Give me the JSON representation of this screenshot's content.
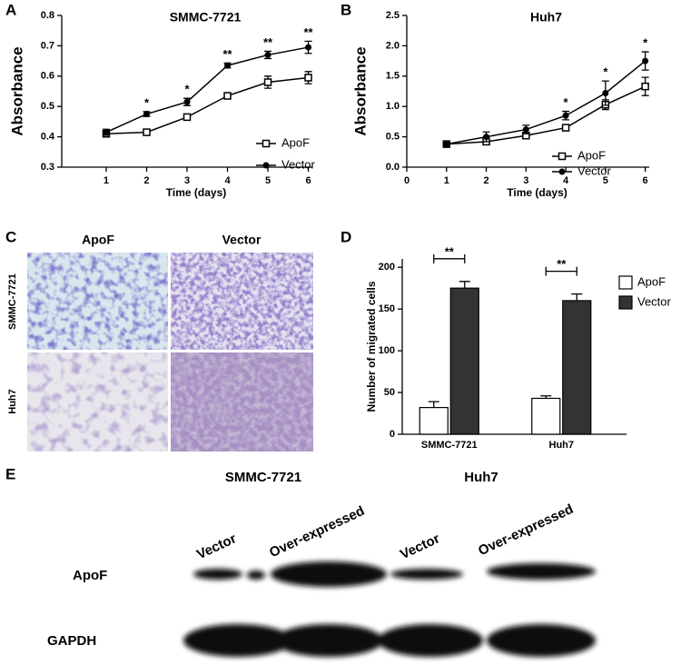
{
  "chart_data": [
    {
      "panel": "A",
      "type": "line",
      "title": "SMMC-7721",
      "xlabel": "Time (days)",
      "ylabel": "Absorbance",
      "x": [
        1,
        2,
        3,
        4,
        5,
        6
      ],
      "series": [
        {
          "name": "ApoF",
          "color": "#000000",
          "marker": "square-open",
          "values": [
            0.41,
            0.415,
            0.465,
            0.535,
            0.58,
            0.595
          ],
          "errors": [
            0.01,
            0.008,
            0.006,
            0.006,
            0.02,
            0.02
          ]
        },
        {
          "name": "Vector",
          "color": "#000000",
          "marker": "circle",
          "values": [
            0.415,
            0.475,
            0.515,
            0.635,
            0.67,
            0.695
          ],
          "errors": [
            0.01,
            0.008,
            0.012,
            0.008,
            0.012,
            0.02
          ]
        }
      ],
      "xlim": [
        -0.1,
        6.1
      ],
      "xticks": [
        1,
        2,
        3,
        4,
        5,
        6
      ],
      "ylim": [
        0.3,
        0.8
      ],
      "yticks": [
        0.3,
        0.4,
        0.5,
        0.6,
        0.7,
        0.8
      ],
      "annotations": [
        {
          "x": 2,
          "text": "*"
        },
        {
          "x": 3,
          "text": "*"
        },
        {
          "x": 4,
          "text": "**"
        },
        {
          "x": 5,
          "text": "**"
        },
        {
          "x": 6,
          "text": "**"
        }
      ]
    },
    {
      "panel": "B",
      "type": "line",
      "title": "Huh7",
      "xlabel": "Time (days)",
      "ylabel": "Absorbance",
      "x": [
        1,
        2,
        3,
        4,
        5,
        6
      ],
      "series": [
        {
          "name": "ApoF",
          "color": "#000000",
          "marker": "square-open",
          "values": [
            0.38,
            0.42,
            0.52,
            0.65,
            1.03,
            1.33
          ],
          "errors": [
            0.02,
            0.05,
            0.05,
            0.05,
            0.08,
            0.15
          ]
        },
        {
          "name": "Vector",
          "color": "#000000",
          "marker": "circle",
          "values": [
            0.38,
            0.5,
            0.62,
            0.85,
            1.22,
            1.75
          ],
          "errors": [
            0.02,
            0.08,
            0.07,
            0.07,
            0.2,
            0.15
          ]
        }
      ],
      "xlim": [
        0,
        6.1
      ],
      "xticks": [
        0,
        1,
        2,
        3,
        4,
        5,
        6
      ],
      "ylim": [
        0,
        2.5
      ],
      "yticks": [
        {
          "value": 0,
          "label": "0.0"
        },
        0.5,
        {
          "value": 1,
          "label": "1.0"
        },
        1.5,
        {
          "value": 2,
          "label": "2.0"
        },
        2.5
      ],
      "annotations": [
        {
          "x": 4,
          "text": "*"
        },
        {
          "x": 5,
          "text": "*"
        },
        {
          "x": 6,
          "text": "*"
        }
      ]
    },
    {
      "panel": "D",
      "type": "bar",
      "ylabel": "Number of migrated cells",
      "categories": [
        "SMMC-7721",
        "Huh7"
      ],
      "series": [
        {
          "name": "ApoF",
          "color": "#ffffff",
          "values": [
            32,
            43
          ],
          "errors": [
            7,
            3
          ]
        },
        {
          "name": "Vector",
          "color": "#333333",
          "values": [
            175,
            160
          ],
          "errors": [
            8,
            8
          ]
        }
      ],
      "ylim": [
        0,
        210
      ],
      "yticks": [
        0,
        50,
        100,
        150,
        200
      ],
      "significance": [
        "**",
        "**"
      ]
    }
  ],
  "panel_c": {
    "panel": "C",
    "columns": [
      "ApoF",
      "Vector"
    ],
    "rows": [
      "SMMC-7721",
      "Huh7"
    ]
  },
  "panel_e": {
    "panel": "E",
    "column_groups": [
      "SMMC-7721",
      "Huh7"
    ],
    "lanes": [
      "Vector",
      "Over-expressed",
      "Vector",
      "Over-expressed"
    ],
    "rows": [
      "ApoF",
      "GAPDH"
    ]
  }
}
